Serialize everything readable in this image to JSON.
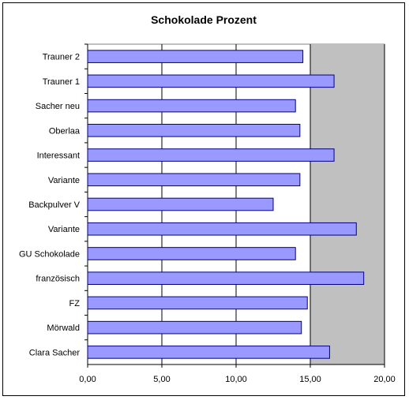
{
  "chart_data": {
    "type": "bar",
    "orientation": "horizontal",
    "title": "Schokolade Prozent",
    "xlabel": "",
    "ylabel": "",
    "xlim": [
      0,
      20
    ],
    "x_ticks": [
      "0,00",
      "5,00",
      "10,00",
      "15,00",
      "20,00"
    ],
    "x_tick_values": [
      0,
      5,
      10,
      15,
      20
    ],
    "categories": [
      "Trauner 2",
      "Trauner 1",
      "Sacher neu",
      "Oberlaa",
      "Interessant",
      "Variante",
      "Backpulver V",
      "Variante",
      "GU Schokolade",
      "französisch",
      "FZ",
      "Mörwald",
      "Clara Sacher"
    ],
    "values": [
      14.5,
      16.6,
      14.0,
      14.3,
      16.6,
      14.3,
      12.5,
      18.1,
      14.0,
      18.6,
      14.8,
      14.4,
      16.3
    ],
    "grid": "vertical",
    "legend": "none",
    "colors": {
      "bar_fill": "#9999ff",
      "bar_stroke": "#000080",
      "plot_background": "#c0c0c0",
      "grid": "#000000"
    }
  }
}
